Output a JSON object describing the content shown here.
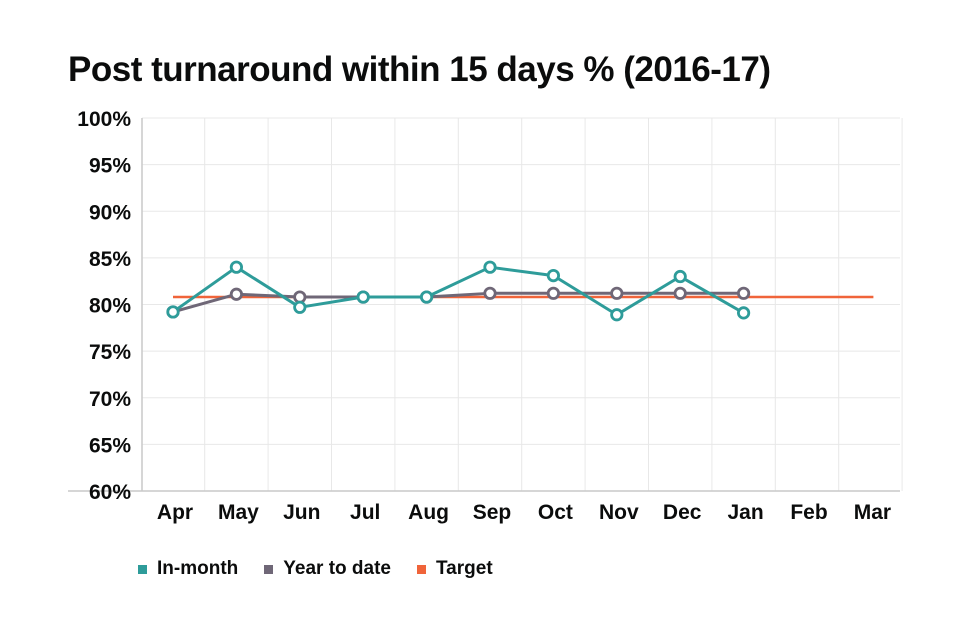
{
  "chart_data": {
    "type": "line",
    "title": "Post turnaround within 15 days % (2016-17)",
    "categories": [
      "Apr",
      "May",
      "Jun",
      "Jul",
      "Aug",
      "Sep",
      "Oct",
      "Nov",
      "Dec",
      "Jan",
      "Feb",
      "Mar"
    ],
    "y_ticks": [
      "60%",
      "65%",
      "70%",
      "75%",
      "80%",
      "85%",
      "90%",
      "95%",
      "100%"
    ],
    "ylim": [
      60,
      100
    ],
    "grid": true,
    "legend_position": "bottom-left",
    "series": [
      {
        "name": "In-month",
        "color": "#2e9c9a",
        "values": [
          79.2,
          84.0,
          79.7,
          80.8,
          80.8,
          84.0,
          83.1,
          78.9,
          83.0,
          79.1,
          null,
          null
        ],
        "markers": true
      },
      {
        "name": "Year to date",
        "color": "#6f6777",
        "values": [
          79.2,
          81.1,
          80.8,
          80.8,
          80.8,
          81.2,
          81.2,
          81.2,
          81.2,
          81.2,
          null,
          null
        ],
        "markers": true
      },
      {
        "name": "Target",
        "color": "#f0643a",
        "values": [
          80.8,
          80.8,
          80.8,
          80.8,
          80.8,
          80.8,
          80.8,
          80.8,
          80.8,
          80.8,
          80.8,
          80.8
        ],
        "markers": false
      }
    ]
  }
}
